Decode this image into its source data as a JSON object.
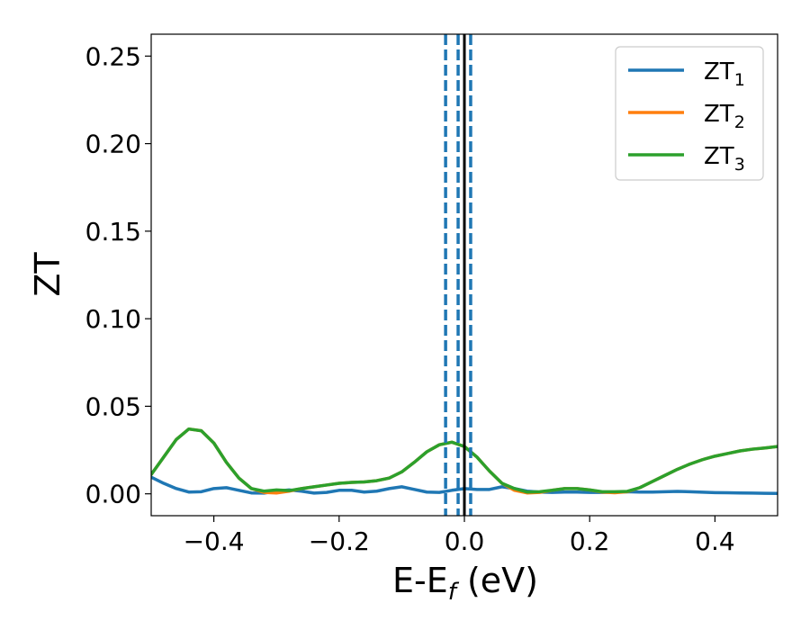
{
  "chart_data": {
    "type": "line",
    "xlabel": "E-E",
    "xlabel_sub": "f",
    "xlabel_unit": " (eV)",
    "ylabel": "ZT",
    "xlim": [
      -0.5,
      0.5
    ],
    "ylim": [
      -0.0125,
      0.2625
    ],
    "x_ticks": [
      -0.4,
      -0.2,
      0.0,
      0.2,
      0.4
    ],
    "x_tick_labels": [
      "−0.4",
      "−0.2",
      "0.0",
      "0.2",
      "0.4"
    ],
    "y_ticks": [
      0.0,
      0.05,
      0.1,
      0.15,
      0.2,
      0.25
    ],
    "y_tick_labels": [
      "0.00",
      "0.05",
      "0.10",
      "0.15",
      "0.20",
      "0.25"
    ],
    "grid": false,
    "legend_position": "top-right",
    "vertical_lines": [
      {
        "x": -0.03,
        "style": "dashed",
        "color": "#1f77b4"
      },
      {
        "x": -0.01,
        "style": "dashed",
        "color": "#1f77b4"
      },
      {
        "x": 0.01,
        "style": "dashed",
        "color": "#1f77b4"
      },
      {
        "x": 0.0,
        "style": "solid",
        "color": "#000000"
      }
    ],
    "series": [
      {
        "name": "ZT",
        "name_sub": "1",
        "color": "#1f77b4",
        "x": [
          -0.5,
          -0.48,
          -0.46,
          -0.44,
          -0.42,
          -0.4,
          -0.38,
          -0.36,
          -0.34,
          -0.32,
          -0.3,
          -0.28,
          -0.26,
          -0.24,
          -0.22,
          -0.2,
          -0.18,
          -0.16,
          -0.14,
          -0.12,
          -0.1,
          -0.08,
          -0.06,
          -0.04,
          -0.02,
          0.0,
          0.02,
          0.04,
          0.06,
          0.08,
          0.1,
          0.12,
          0.14,
          0.16,
          0.18,
          0.2,
          0.22,
          0.24,
          0.26,
          0.28,
          0.3,
          0.32,
          0.34,
          0.36,
          0.38,
          0.4,
          0.42,
          0.44,
          0.46,
          0.48,
          0.5
        ],
        "y": [
          0.0095,
          0.006,
          0.003,
          0.001,
          0.0012,
          0.003,
          0.0035,
          0.002,
          0.0005,
          0.0004,
          0.0015,
          0.0022,
          0.0015,
          0.0004,
          0.0008,
          0.002,
          0.002,
          0.001,
          0.0015,
          0.003,
          0.004,
          0.0025,
          0.001,
          0.0008,
          0.002,
          0.003,
          0.0025,
          0.0025,
          0.004,
          0.003,
          0.0015,
          0.001,
          0.0008,
          0.001,
          0.001,
          0.0008,
          0.0008,
          0.001,
          0.0012,
          0.001,
          0.001,
          0.0012,
          0.0014,
          0.0012,
          0.0009,
          0.0007,
          0.0006,
          0.0005,
          0.0004,
          0.0003,
          0.0002
        ]
      },
      {
        "name": "ZT",
        "name_sub": "2",
        "color": "#ff7f0e",
        "x": [
          -0.5,
          -0.48,
          -0.46,
          -0.44,
          -0.42,
          -0.4,
          -0.38,
          -0.36,
          -0.34,
          -0.32,
          -0.3,
          -0.28,
          -0.26,
          -0.24,
          -0.22,
          -0.2,
          -0.18,
          -0.16,
          -0.14,
          -0.12,
          -0.1,
          -0.08,
          -0.06,
          -0.04,
          -0.02,
          0.0,
          0.02,
          0.04,
          0.06,
          0.08,
          0.1,
          0.12,
          0.14,
          0.16,
          0.18,
          0.2,
          0.22,
          0.24,
          0.26,
          0.28,
          0.3,
          0.32,
          0.34,
          0.36,
          0.38,
          0.4,
          0.42,
          0.44,
          0.46,
          0.48,
          0.5
        ],
        "y": [
          0.011,
          0.021,
          0.031,
          0.037,
          0.036,
          0.029,
          0.018,
          0.009,
          0.003,
          0.0008,
          0.0005,
          0.0015,
          0.003,
          0.004,
          0.005,
          0.006,
          0.0065,
          0.0068,
          0.0075,
          0.009,
          0.0125,
          0.018,
          0.024,
          0.028,
          0.0295,
          0.027,
          0.021,
          0.013,
          0.006,
          0.002,
          0.0005,
          0.0008,
          0.002,
          0.003,
          0.003,
          0.0022,
          0.001,
          0.0006,
          0.0012,
          0.0035,
          0.007,
          0.0105,
          0.014,
          0.017,
          0.0195,
          0.0215,
          0.023,
          0.0245,
          0.0255,
          0.0262,
          0.027
        ]
      },
      {
        "name": "ZT",
        "name_sub": "3",
        "color": "#2ca02c",
        "x": [
          -0.5,
          -0.48,
          -0.46,
          -0.44,
          -0.42,
          -0.4,
          -0.38,
          -0.36,
          -0.34,
          -0.32,
          -0.3,
          -0.28,
          -0.26,
          -0.24,
          -0.22,
          -0.2,
          -0.18,
          -0.16,
          -0.14,
          -0.12,
          -0.1,
          -0.08,
          -0.06,
          -0.04,
          -0.02,
          0.0,
          0.02,
          0.04,
          0.06,
          0.08,
          0.1,
          0.12,
          0.14,
          0.16,
          0.18,
          0.2,
          0.22,
          0.24,
          0.26,
          0.28,
          0.3,
          0.32,
          0.34,
          0.36,
          0.38,
          0.4,
          0.42,
          0.44,
          0.46,
          0.48,
          0.5
        ],
        "y": [
          0.011,
          0.021,
          0.031,
          0.037,
          0.036,
          0.029,
          0.018,
          0.009,
          0.003,
          0.0015,
          0.0022,
          0.0018,
          0.003,
          0.004,
          0.005,
          0.006,
          0.0065,
          0.0068,
          0.0075,
          0.009,
          0.0125,
          0.018,
          0.024,
          0.028,
          0.0295,
          0.027,
          0.021,
          0.013,
          0.006,
          0.003,
          0.001,
          0.0012,
          0.002,
          0.003,
          0.003,
          0.0022,
          0.0012,
          0.0012,
          0.0014,
          0.0035,
          0.007,
          0.0105,
          0.014,
          0.017,
          0.0195,
          0.0215,
          0.023,
          0.0245,
          0.0255,
          0.0262,
          0.027
        ]
      }
    ]
  }
}
